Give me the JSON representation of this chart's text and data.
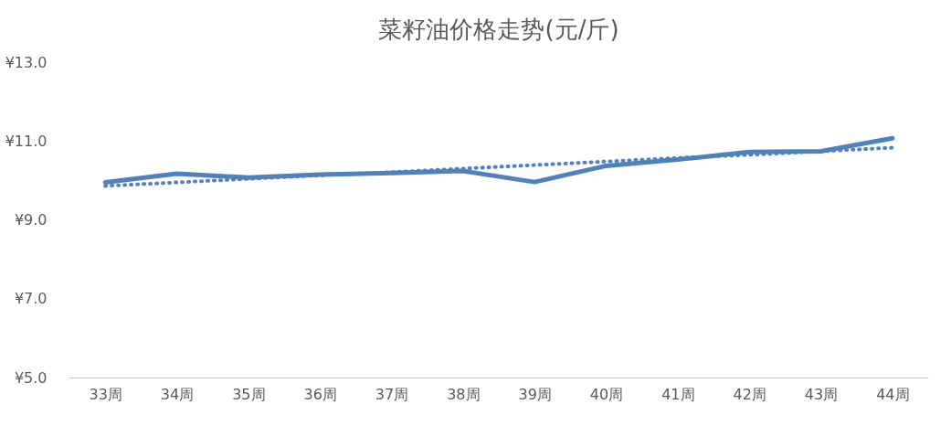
{
  "chart_data": {
    "type": "line",
    "title": "菜籽油价格走势(元/斤)",
    "categories": [
      "33周",
      "34周",
      "35周",
      "36周",
      "37周",
      "38周",
      "39周",
      "40周",
      "41周",
      "42周",
      "43周",
      "44周"
    ],
    "series": [
      {
        "color": "#4f81bd",
        "line_style": "solid",
        "values": [
          9.95,
          10.17,
          10.07,
          10.15,
          10.19,
          10.24,
          9.96,
          10.37,
          10.53,
          10.72,
          10.74,
          11.07
        ]
      },
      {
        "type": "line",
        "color": "#4f81bd",
        "line_style": "dotted",
        "values": [
          9.86,
          9.95,
          10.04,
          10.13,
          10.21,
          10.3,
          10.39,
          10.48,
          10.57,
          10.65,
          10.74,
          10.83
        ]
      }
    ],
    "ylim": [
      5,
      13
    ],
    "yticks": [
      {
        "value": 5,
        "label": "¥5.0"
      },
      {
        "value": 7,
        "label": "¥7.0"
      },
      {
        "value": 9,
        "label": "¥9.0"
      },
      {
        "value": 11,
        "label": "¥11.0"
      },
      {
        "value": 13,
        "label": "¥13.0"
      }
    ],
    "grid": false,
    "marker": "none"
  }
}
